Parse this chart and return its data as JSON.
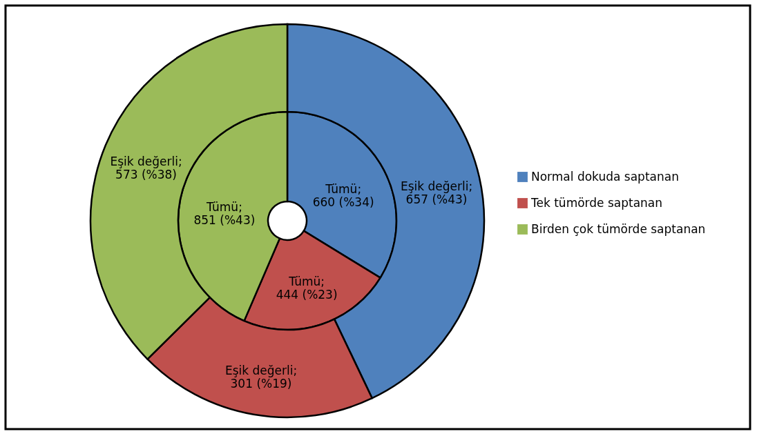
{
  "chart_data": {
    "type": "donut",
    "categories": [
      "Normal dokuda saptanan",
      "Tek tümörde saptanan",
      "Birden çok tümörde saptanan"
    ],
    "colors": [
      "#4f81bd",
      "#c0504d",
      "#9bbb59"
    ],
    "series": [
      {
        "name": "Tümü;",
        "values": [
          660,
          444,
          851
        ],
        "value_labels": [
          "660 (%34)",
          "444 (%23)",
          "851 (%43)"
        ]
      },
      {
        "name": "Eşik değerli;",
        "values": [
          657,
          301,
          573
        ],
        "value_labels": [
          "657 (%43)",
          "301 (%19)",
          "573 (%38)"
        ]
      }
    ],
    "legend": "right"
  }
}
